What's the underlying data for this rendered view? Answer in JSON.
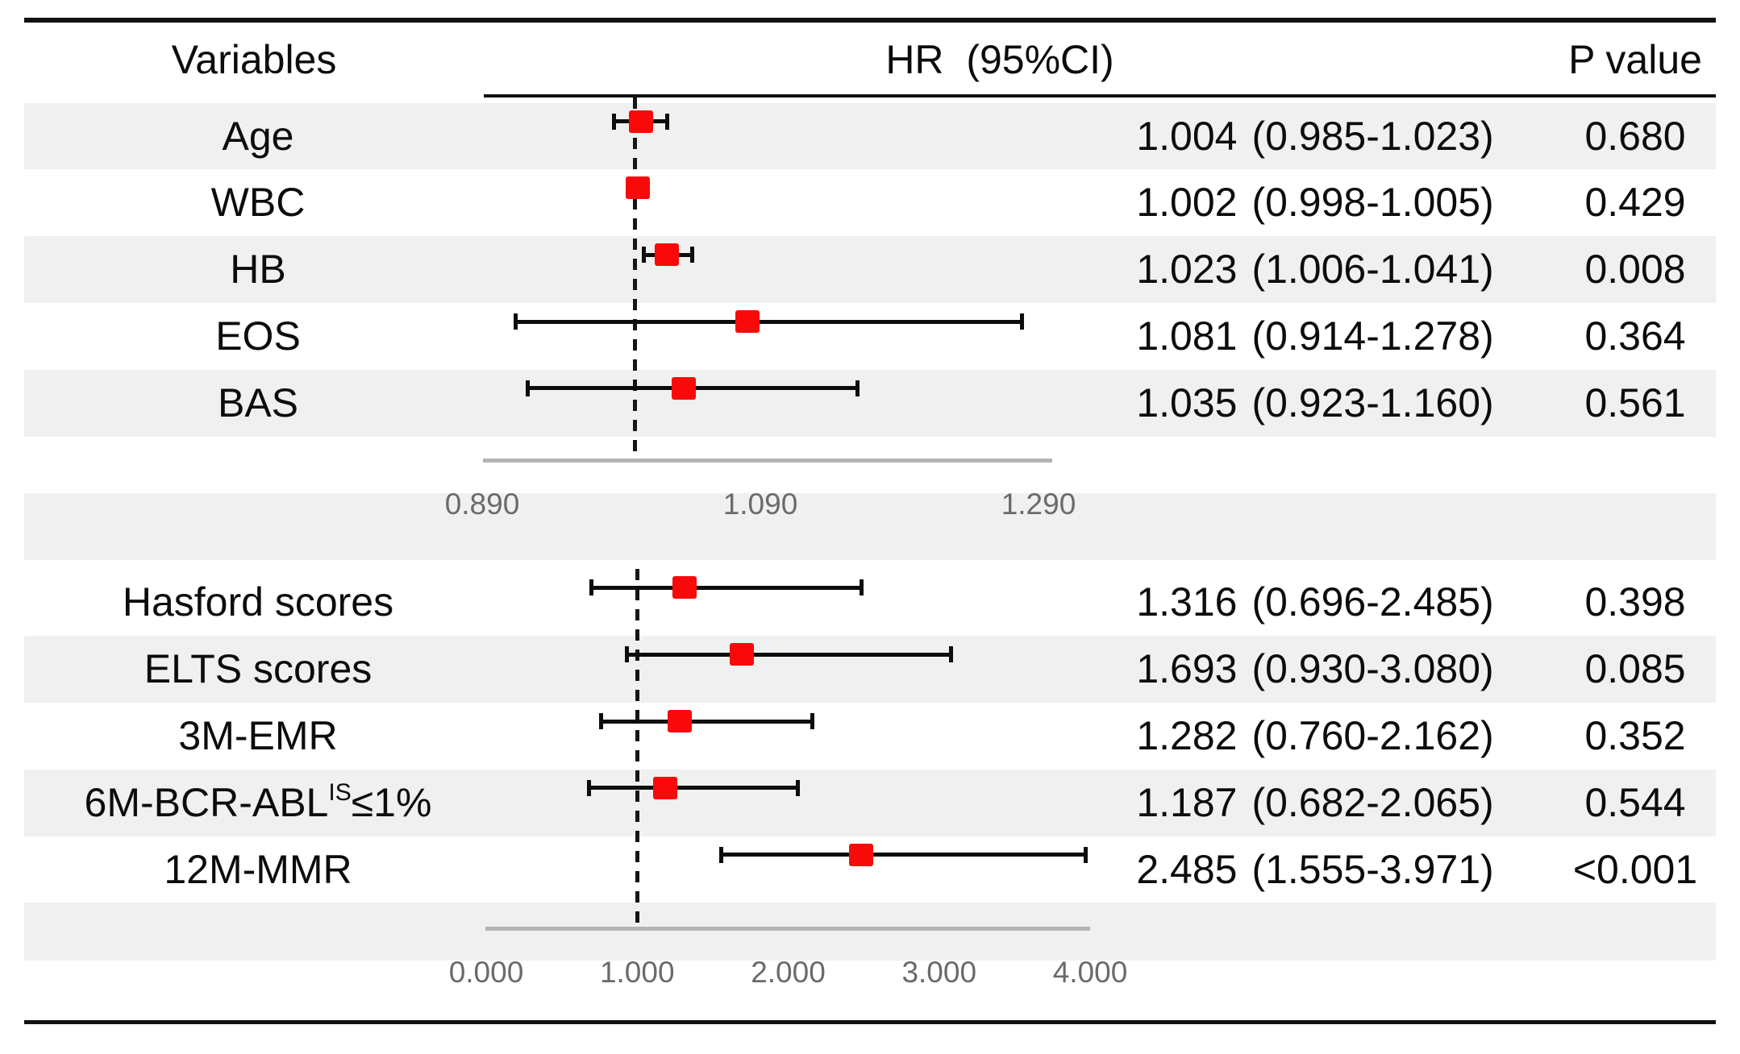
{
  "header": {
    "variables": "Variables",
    "hr": "HR  (95%CI)",
    "p": "P value"
  },
  "chart_data": {
    "type": "forest",
    "title": "",
    "columns": [
      "Variables",
      "HR (95%CI)",
      "P value"
    ],
    "marker_color": "#f90a0a",
    "shade_color": "#f0f0f0",
    "reference_line_style": "dashed",
    "sections": [
      {
        "rows": [
          {
            "label": "Age",
            "hr": "1.004",
            "ci": "(0.985-1.023)",
            "p": "0.680"
          },
          {
            "label": "WBC",
            "hr": "1.002",
            "ci": "(0.998-1.005)",
            "p": "0.429"
          },
          {
            "label": "HB",
            "hr": "1.023",
            "ci": "(1.006-1.041)",
            "p": "0.008"
          },
          {
            "label": "EOS",
            "hr": "1.081",
            "ci": "(0.914-1.278)",
            "p": "0.364"
          },
          {
            "label": "BAS",
            "hr": "1.035",
            "ci": "(0.923-1.160)",
            "p": "0.561"
          }
        ],
        "axis": {
          "tick_labels": [
            "0.890",
            "1.090",
            "1.290"
          ],
          "min": 0.89,
          "max": 1.29,
          "reference_value": 1.0
        },
        "first_row_shaded": true
      },
      {
        "rows": [
          {
            "label": "Hasford scores",
            "hr": "1.316",
            "ci": "(0.696-2.485)",
            "p": "0.398"
          },
          {
            "label": "ELTS scores",
            "hr": "1.693",
            "ci": "(0.930-3.080)",
            "p": "0.085"
          },
          {
            "label": "3M-EMR",
            "hr": "1.282",
            "ci": "(0.760-2.162)",
            "p": "0.352"
          },
          {
            "label": "6M-BCR-ABL",
            "label_sup": "IS",
            "label_suffix": "≤1%",
            "hr": "1.187",
            "ci": "(0.682-2.065)",
            "p": "0.544"
          },
          {
            "label": "12M-MMR",
            "hr": "2.485",
            "ci": "(1.555-3.971)",
            "p": "<0.001"
          }
        ],
        "axis": {
          "tick_labels": [
            "0.000",
            "1.000",
            "2.000",
            "3.000",
            "4.000"
          ],
          "min": 0.0,
          "max": 4.0,
          "reference_value": 1.0
        },
        "first_row_shaded": false
      }
    ]
  }
}
